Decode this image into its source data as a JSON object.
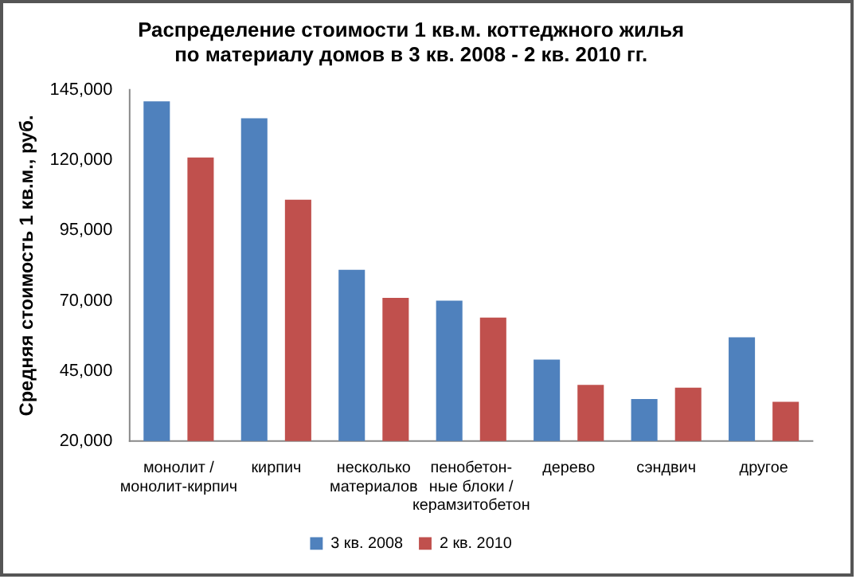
{
  "chart_data": {
    "type": "bar",
    "title": "Распределение стоимости 1 кв.м. коттеджного жилья\nпо материалу домов в 3 кв. 2008 - 2 кв. 2010 гг.",
    "ylabel": "Средняя стоимость 1 кв.м., руб.",
    "categories": [
      "монолит /\nмонолит-кирпич",
      "кирпич",
      "несколько\nматериалов",
      "пенобетон-\nные блоки /\nкерамзитобетон",
      "дерево",
      "сэндвич",
      "другое"
    ],
    "series": [
      {
        "name": "3 кв. 2008",
        "color": "#4f81bd",
        "values": [
          141000,
          135000,
          81000,
          70000,
          49000,
          35000,
          57000
        ]
      },
      {
        "name": "2 кв. 2010",
        "color": "#c0504d",
        "values": [
          121000,
          106000,
          71000,
          64000,
          40000,
          39000,
          34000
        ]
      }
    ],
    "ylim": [
      20000,
      145000
    ],
    "yticks": [
      {
        "value": 20000,
        "label": "20,000"
      },
      {
        "value": 45000,
        "label": "45,000"
      },
      {
        "value": 70000,
        "label": "70,000"
      },
      {
        "value": 95000,
        "label": "95,000"
      },
      {
        "value": 120000,
        "label": "120,000"
      },
      {
        "value": 145000,
        "label": "145,000"
      }
    ],
    "grid": false,
    "legend": "bottom"
  }
}
